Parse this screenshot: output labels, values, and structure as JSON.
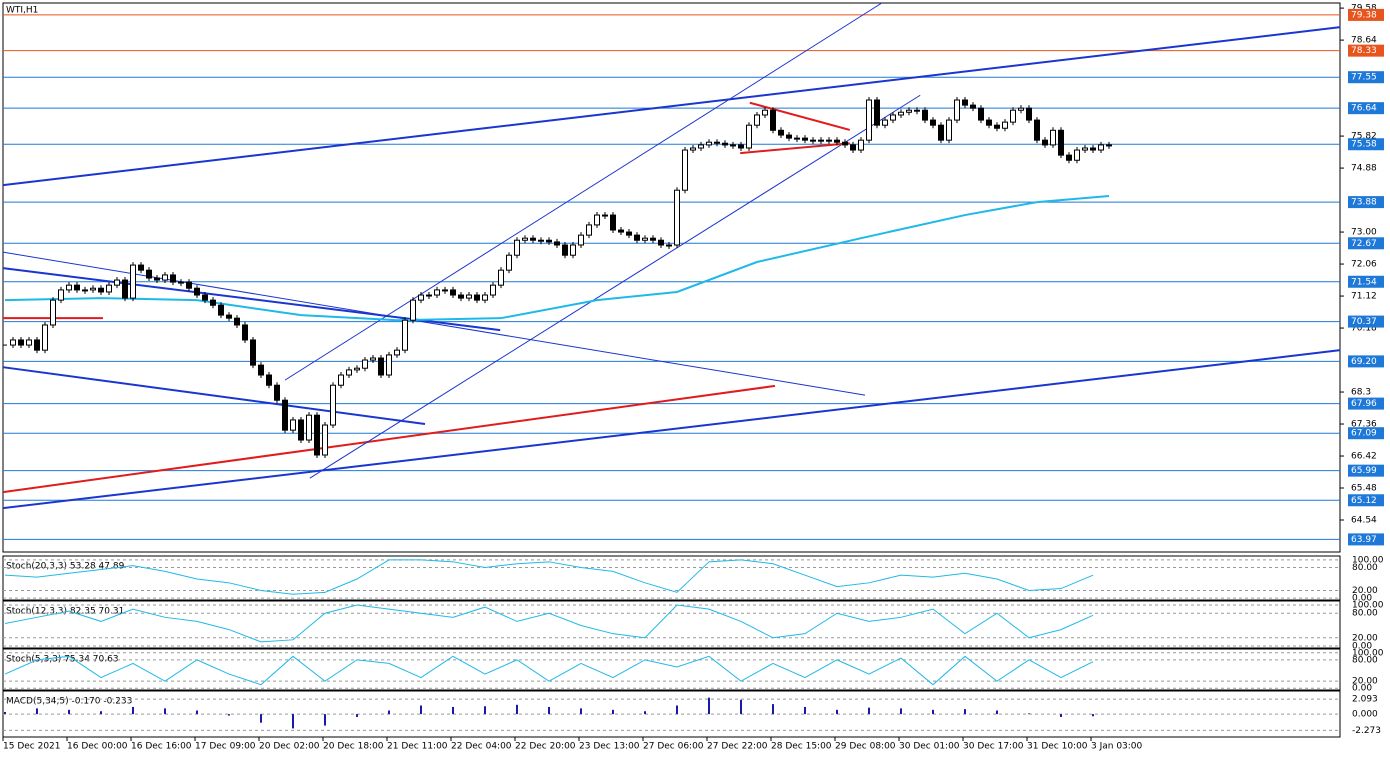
{
  "chart_data": {
    "type": "candlestick",
    "title": "WTI,H1",
    "categories": [
      "15 Dec 2021",
      null,
      null,
      null,
      null,
      null,
      null,
      null,
      "16 Dec 00:00",
      null,
      null,
      null,
      null,
      null,
      null,
      null,
      "16 Dec 16:00",
      null,
      null,
      null,
      null,
      null,
      null,
      null,
      "17 Dec 09:00",
      null,
      null,
      null,
      null,
      null,
      null,
      null,
      "20 Dec 02:00",
      null,
      null,
      null,
      null,
      null,
      null,
      null,
      "20 Dec 18:00",
      null,
      null,
      null,
      null,
      null,
      null,
      null,
      "21 Dec 11:00",
      null,
      null,
      null,
      null,
      null,
      null,
      null,
      "22 Dec 04:00",
      null,
      null,
      null,
      null,
      null,
      null,
      null,
      "22 Dec 20:00",
      null,
      null,
      null,
      null,
      null,
      null,
      null,
      "23 Dec 13:00",
      null,
      null,
      null,
      null,
      null,
      null,
      null,
      "27 Dec 06:00",
      null,
      null,
      null,
      null,
      null,
      null,
      null,
      "27 Dec 22:00",
      null,
      null,
      null,
      null,
      null,
      null,
      null,
      "28 Dec 15:00",
      null,
      null,
      null,
      null,
      null,
      null,
      null,
      "29 Dec 08:00",
      null,
      null,
      null,
      null,
      null,
      null,
      null,
      "30 Dec 01:00",
      null,
      null,
      null,
      null,
      null,
      null,
      null,
      "30 Dec 17:00",
      null,
      null,
      null,
      null,
      null,
      null,
      null,
      "31 Dec 10:00",
      null,
      null,
      null,
      null,
      null,
      null,
      null,
      "3 Jan 03:00",
      null,
      null
    ],
    "values": [
      69.68,
      69.83,
      69.68,
      69.83,
      69.53,
      70.27,
      71.0,
      71.3,
      71.44,
      71.3,
      71.3,
      71.35,
      71.24,
      71.44,
      71.59,
      71.06,
      72.03,
      71.88,
      71.65,
      71.59,
      71.74,
      71.53,
      71.53,
      71.35,
      71.15,
      71.0,
      70.85,
      70.56,
      70.47,
      70.27,
      69.83,
      69.09,
      68.8,
      68.5,
      68.06,
      67.18,
      67.48,
      66.89,
      67.62,
      66.45,
      67.33,
      68.5,
      68.8,
      68.95,
      69.0,
      69.24,
      69.3,
      68.8,
      69.39,
      69.53,
      70.41,
      71.0,
      71.15,
      71.15,
      71.3,
      71.3,
      71.15,
      71.06,
      71.15,
      71.0,
      71.15,
      71.44,
      71.88,
      72.32,
      72.76,
      72.82,
      72.76,
      72.76,
      72.71,
      72.62,
      72.32,
      72.62,
      72.91,
      73.21,
      73.5,
      73.5,
      73.06,
      73.0,
      72.91,
      72.76,
      72.82,
      72.76,
      72.62,
      72.62,
      74.23,
      75.41,
      75.47,
      75.56,
      75.64,
      75.61,
      75.56,
      75.56,
      75.47,
      76.14,
      76.44,
      76.58,
      75.99,
      75.85,
      75.76,
      75.76,
      75.7,
      75.7,
      75.7,
      75.7,
      75.64,
      75.56,
      75.41,
      75.7,
      76.88,
      76.14,
      76.29,
      76.44,
      76.52,
      76.58,
      76.58,
      76.29,
      76.14,
      75.7,
      76.29,
      76.88,
      76.73,
      76.64,
      76.29,
      76.14,
      76.05,
      76.23,
      76.58,
      76.64,
      76.29,
      75.7,
      75.56,
      75.99,
      75.26,
      75.11,
      75.41,
      75.47,
      75.41,
      75.56,
      75.56
    ],
    "ylim": [
      63.6,
      79.73
    ],
    "yticks": [
      79.58,
      78.64,
      75.82,
      74.88,
      {
        "value": 73,
        "label": "73.00"
      },
      72.06,
      71.12,
      70.18,
      68.3,
      67.36,
      66.42,
      65.48,
      64.54
    ],
    "levels": [
      {
        "value": 79.38,
        "color": "#e8541d"
      },
      {
        "value": 78.33,
        "color": "#e8541d"
      },
      {
        "value": 77.55,
        "color": "#1e78d8"
      },
      {
        "value": 76.64,
        "color": "#1e78d8"
      },
      {
        "value": 75.58,
        "color": "#1e78d8"
      },
      {
        "value": 73.88,
        "color": "#1e78d8"
      },
      {
        "value": 72.67,
        "color": "#1e78d8"
      },
      {
        "value": 71.54,
        "color": "#1e78d8"
      },
      {
        "value": 70.37,
        "color": "#1e78d8"
      },
      {
        "value": 69.2,
        "label": "69.20",
        "color": "#1e78d8"
      },
      {
        "value": 67.96,
        "color": "#1e78d8"
      },
      {
        "value": 67.09,
        "color": "#1e78d8"
      },
      {
        "value": 65.99,
        "color": "#1e78d8"
      },
      {
        "value": 65.12,
        "color": "#1e78d8"
      },
      {
        "value": 63.97,
        "color": "#1e78d8"
      }
    ],
    "overlays": [
      {
        "color": "#1fb9e8",
        "x": [
          0,
          12,
          24,
          37,
          49,
          62,
          74,
          84,
          94,
          107,
          120,
          129,
          138
        ],
        "values": [
          71.0,
          71.06,
          71.0,
          70.56,
          70.41,
          70.47,
          71.0,
          71.24,
          72.12,
          72.82,
          73.5,
          73.88,
          74.06
        ]
      }
    ],
    "trendlines": [
      {
        "color": "#1a35d0",
        "width": 2,
        "x": [
          -0.25,
          166.9
        ],
        "values": [
          74.38,
          79.02
        ]
      },
      {
        "color": "#1a35d0",
        "width": 2,
        "x": [
          -0.25,
          166.9
        ],
        "values": [
          64.89,
          69.53
        ]
      },
      {
        "color": "#e01c1c",
        "width": 2,
        "x": [
          -0.25,
          96.25
        ],
        "values": [
          65.36,
          68.48
        ]
      },
      {
        "color": "#1a35d0",
        "width": 2,
        "x": [
          -0.25,
          61.9
        ],
        "values": [
          71.94,
          70.12
        ]
      },
      {
        "color": "#1a35d0",
        "width": 1,
        "x": [
          -0.25,
          107.5
        ],
        "values": [
          72.41,
          68.21
        ]
      },
      {
        "color": "#1a35d0",
        "width": 2,
        "x": [
          -0.25,
          52.5
        ],
        "values": [
          69.03,
          67.36
        ]
      },
      {
        "color": "#1a35d0",
        "width": 1,
        "x": [
          35,
          109.6
        ],
        "values": [
          68.65,
          79.73
        ]
      },
      {
        "color": "#1a35d0",
        "width": 1,
        "x": [
          38.1,
          114.4
        ],
        "values": [
          65.77,
          77.02
        ]
      },
      {
        "color": "#e01c1c",
        "width": 2,
        "x": [
          93.1,
          105.6
        ],
        "values": [
          76.8,
          76.0
        ]
      },
      {
        "color": "#e01c1c",
        "width": 2,
        "x": [
          91.9,
          105.6
        ],
        "values": [
          75.32,
          75.61
        ]
      },
      {
        "color": "#e01c1c",
        "width": 2,
        "x": [
          -0.25,
          12.25
        ],
        "values": [
          70.47,
          70.47
        ]
      }
    ],
    "panels": [
      {
        "type": "line",
        "title": "Stoch(20,3,3) 53.28 47.89",
        "color": "#1fb9e8",
        "x": [
          0,
          4,
          8,
          12,
          16,
          20,
          24,
          28,
          32,
          36,
          40,
          44,
          48,
          52,
          56,
          60,
          64,
          68,
          72,
          76,
          80,
          84,
          88,
          92,
          96,
          100,
          104,
          108,
          112,
          116,
          120,
          124,
          128,
          132,
          136
        ],
        "values": [
          60,
          55,
          65,
          75,
          85,
          70,
          50,
          40,
          20,
          10,
          15,
          50,
          100,
          100,
          95,
          80,
          90,
          95,
          80,
          70,
          40,
          15,
          95,
          100,
          90,
          60,
          30,
          40,
          60,
          55,
          65,
          50,
          20,
          25,
          60
        ],
        "ylim": [
          -5,
          105
        ],
        "yticks": [
          {
            "value": 100,
            "label": "100.00"
          },
          {
            "value": 80,
            "label": "80.00"
          },
          {
            "value": 20,
            "label": "20.00"
          },
          {
            "value": 0,
            "label": "0.00"
          }
        ]
      },
      {
        "type": "line",
        "title": "Stoch(12,3,3) 82.35 70.31",
        "color": "#1fb9e8",
        "x": [
          0,
          4,
          8,
          12,
          16,
          20,
          24,
          28,
          32,
          36,
          40,
          44,
          48,
          52,
          56,
          60,
          64,
          68,
          72,
          76,
          80,
          84,
          88,
          92,
          96,
          100,
          104,
          108,
          112,
          116,
          120,
          124,
          128,
          132,
          136
        ],
        "values": [
          55,
          70,
          85,
          60,
          90,
          70,
          60,
          40,
          10,
          15,
          80,
          100,
          90,
          80,
          70,
          95,
          60,
          80,
          50,
          30,
          20,
          100,
          90,
          60,
          20,
          30,
          80,
          60,
          70,
          90,
          30,
          80,
          20,
          40,
          75
        ],
        "ylim": [
          -5,
          105
        ],
        "yticks": [
          {
            "value": 100,
            "label": "100.00"
          },
          {
            "value": 80,
            "label": "80.00"
          },
          {
            "value": 20,
            "label": "20.00"
          },
          {
            "value": 0,
            "label": "0.00"
          }
        ]
      },
      {
        "type": "line",
        "title": "Stoch(5,3,3) 75.34 70.63",
        "color": "#1fb9e8",
        "x": [
          0,
          4,
          8,
          12,
          16,
          20,
          24,
          28,
          32,
          36,
          40,
          44,
          48,
          52,
          56,
          60,
          64,
          68,
          72,
          76,
          80,
          84,
          88,
          92,
          96,
          100,
          104,
          108,
          112,
          116,
          120,
          124,
          128,
          132,
          136
        ],
        "values": [
          40,
          80,
          90,
          30,
          70,
          20,
          80,
          40,
          10,
          90,
          20,
          80,
          70,
          30,
          90,
          40,
          80,
          20,
          70,
          30,
          80,
          60,
          90,
          20,
          70,
          30,
          80,
          40,
          85,
          10,
          90,
          20,
          80,
          30,
          75
        ],
        "ylim": [
          -5,
          105
        ],
        "yticks": [
          {
            "value": 100,
            "label": "100.00"
          },
          {
            "value": 80,
            "label": "80.00"
          },
          {
            "value": 20,
            "label": "20.00"
          },
          {
            "value": 0,
            "label": "0.00"
          }
        ]
      },
      {
        "type": "bar",
        "title": "MACD(5,34,5) -0.170 -0.233",
        "color": "#1a1aa8",
        "x": [
          0,
          4,
          8,
          12,
          16,
          20,
          24,
          28,
          32,
          36,
          40,
          44,
          48,
          52,
          56,
          60,
          64,
          68,
          72,
          76,
          80,
          84,
          88,
          92,
          96,
          100,
          104,
          108,
          112,
          116,
          120,
          124,
          128,
          132,
          136
        ],
        "values": [
          0.3,
          0.8,
          0.6,
          0.4,
          1.0,
          0.8,
          0.5,
          -0.2,
          -1.2,
          -2.0,
          -1.6,
          -0.4,
          0.5,
          1.2,
          1.0,
          1.1,
          1.3,
          1.0,
          0.8,
          0.6,
          0.4,
          1.2,
          2.3,
          2.0,
          1.4,
          1.0,
          0.6,
          0.9,
          0.8,
          0.6,
          0.7,
          0.5,
          0.1,
          -0.4,
          -0.3
        ],
        "ylim": [
          -3.2,
          2.95
        ],
        "yticks": [
          2.093,
          {
            "value": 0,
            "label": "0.000"
          },
          -2.273
        ]
      }
    ]
  }
}
